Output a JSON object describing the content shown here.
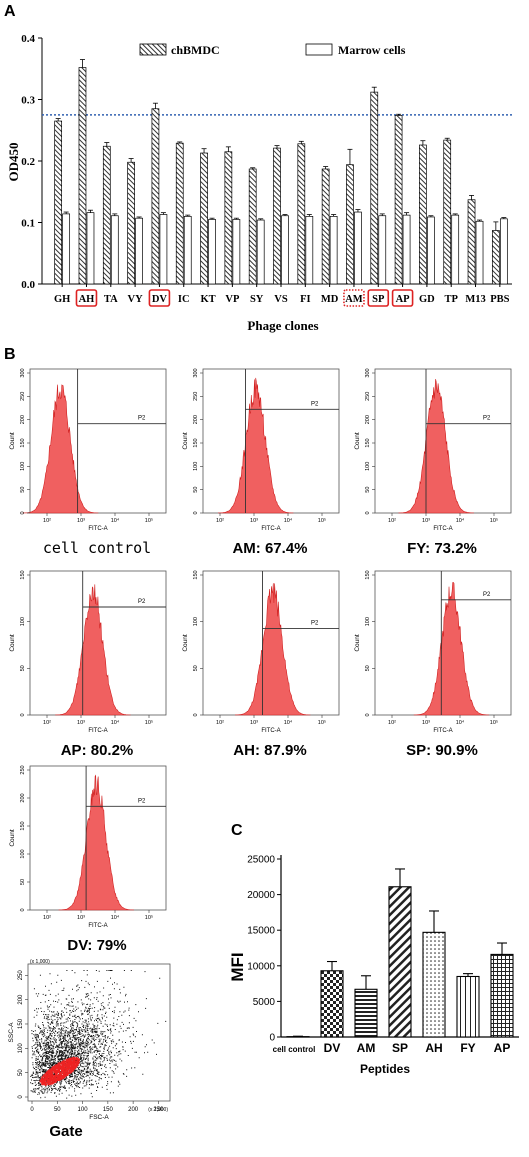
{
  "panels": {
    "a": {
      "letter": "A"
    },
    "b": {
      "letter": "B"
    },
    "c": {
      "letter": "C"
    }
  },
  "chart_data": [
    {
      "type": "bar",
      "panel": "A",
      "categories": [
        "GH",
        "AH",
        "TA",
        "VY",
        "DV",
        "IC",
        "KT",
        "VP",
        "SY",
        "VS",
        "FI",
        "MD",
        "AM",
        "SP",
        "AP",
        "GD",
        "TP",
        "M13",
        "PBS"
      ],
      "highlighted_solid": [
        "AH",
        "DV",
        "SP",
        "AP"
      ],
      "highlighted_dotted": [
        "AM"
      ],
      "series": [
        {
          "name": "chBMDC",
          "values": [
            0.265,
            0.352,
            0.224,
            0.198,
            0.285,
            0.229,
            0.213,
            0.215,
            0.187,
            0.221,
            0.228,
            0.187,
            0.194,
            0.312,
            0.274,
            0.226,
            0.234,
            0.137,
            0.087
          ],
          "errors": [
            0.004,
            0.013,
            0.006,
            0.006,
            0.009,
            0.002,
            0.007,
            0.008,
            0.002,
            0.004,
            0.004,
            0.004,
            0.025,
            0.008,
            0.002,
            0.007,
            0.003,
            0.007,
            0.014
          ]
        },
        {
          "name": "Marrow cells",
          "values": [
            0.114,
            0.116,
            0.111,
            0.107,
            0.113,
            0.11,
            0.105,
            0.105,
            0.104,
            0.111,
            0.11,
            0.11,
            0.117,
            0.111,
            0.112,
            0.109,
            0.112,
            0.102,
            0.106
          ],
          "errors": [
            0.003,
            0.004,
            0.003,
            0.002,
            0.003,
            0.002,
            0.002,
            0.002,
            0.002,
            0.002,
            0.003,
            0.003,
            0.004,
            0.003,
            0.004,
            0.002,
            0.002,
            0.002,
            0.002
          ]
        }
      ],
      "threshold": 0.275,
      "ylabel": "OD450",
      "xlabel": "Phage clones",
      "ylim": [
        0,
        0.4
      ],
      "yticks": [
        "0.0",
        "0.1",
        "0.2",
        "0.3",
        "0.4"
      ],
      "legend_position": "top"
    },
    {
      "type": "histogram",
      "panel": "B",
      "x_axis_label": "FITC-A",
      "y_axis_label": "Count",
      "gate_label": "P2",
      "histograms": [
        {
          "label": "cell control",
          "percent": "",
          "peak_log": 2.4,
          "gate_height": 0.62,
          "yticks": [
            "0",
            "50",
            "100",
            "150",
            "200",
            "250",
            "300"
          ]
        },
        {
          "label": "AM",
          "percent": "67.4%",
          "peak_log": 3.05,
          "gate_height": 0.72,
          "yticks": [
            "0",
            "50",
            "100",
            "150",
            "200",
            "250",
            "300"
          ]
        },
        {
          "label": "FY",
          "percent": "73.2%",
          "peak_log": 3.3,
          "gate_height": 0.62,
          "yticks": [
            "0",
            "50",
            "100",
            "150",
            "200",
            "250",
            "300"
          ]
        },
        {
          "label": "AP",
          "percent": "80.2%",
          "peak_log": 3.35,
          "gate_height": 0.75,
          "yticks": [
            "0",
            "50",
            "100",
            "150"
          ]
        },
        {
          "label": "AH",
          "percent": "87.9%",
          "peak_log": 3.55,
          "gate_height": 0.6,
          "yticks": [
            "0",
            "50",
            "100",
            "150"
          ]
        },
        {
          "label": "SP",
          "percent": "90.9%",
          "peak_log": 3.75,
          "gate_height": 0.8,
          "yticks": [
            "0",
            "50",
            "100",
            "150"
          ]
        },
        {
          "label": "DV",
          "percent": "79%",
          "peak_log": 3.45,
          "gate_height": 0.72,
          "yticks": [
            "0",
            "50",
            "100",
            "150",
            "200",
            "250"
          ]
        }
      ],
      "x_ticks": [
        "10²",
        "10³",
        "10⁴",
        "10⁵"
      ],
      "gate_plot": {
        "label": "Gate",
        "x_axis_label": "FSC-A",
        "y_axis_label": "SSC-A",
        "x_multiplier": "(x 1,000)",
        "y_multiplier": "(x 1,000)",
        "x_ticks": [
          "0",
          "50",
          "100",
          "150",
          "200",
          "250"
        ],
        "y_ticks": [
          "0",
          "50",
          "100",
          "150",
          "200",
          "250"
        ]
      }
    },
    {
      "type": "bar",
      "panel": "C",
      "categories": [
        "cell control",
        "DV",
        "AM",
        "SP",
        "AH",
        "FY",
        "AP"
      ],
      "values": [
        50,
        9300,
        6700,
        21100,
        14700,
        8500,
        11600
      ],
      "errors": [
        60,
        1300,
        1900,
        2500,
        3000,
        400,
        1600
      ],
      "patterns": [
        "solid",
        "check",
        "hstripe",
        "diag",
        "dots",
        "vstripe",
        "grid"
      ],
      "ylabel": "MFI",
      "xlabel": "Peptides",
      "ylim": [
        0,
        25000
      ],
      "yticks": [
        "0",
        "5000",
        "10000",
        "15000",
        "20000",
        "25000"
      ]
    }
  ]
}
